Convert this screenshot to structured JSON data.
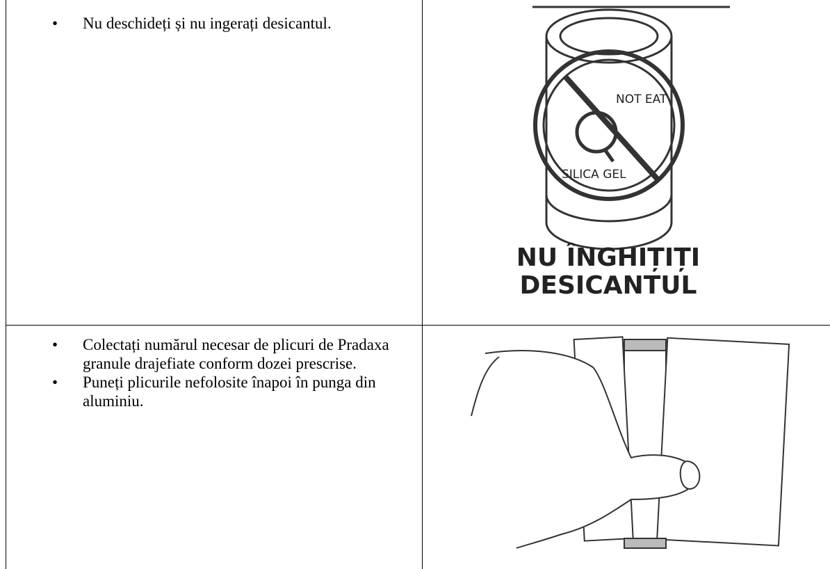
{
  "table": {
    "rows": [
      {
        "bullets": [
          "Nu deschideți și nu ingerați desicantul."
        ],
        "image": {
          "label_top": "NOT EAT",
          "label_bottom": "SILICA GEL",
          "caption": [
            "NU ÎNGHIȚIȚI",
            "DESICANTUL"
          ]
        }
      },
      {
        "bullets": [
          "Colectați numărul necesar de plicuri de Pradaxa granule drajefiate conform dozei prescrise.",
          "Puneți plicurile nefolosite înapoi în punga din aluminiu."
        ]
      }
    ]
  }
}
